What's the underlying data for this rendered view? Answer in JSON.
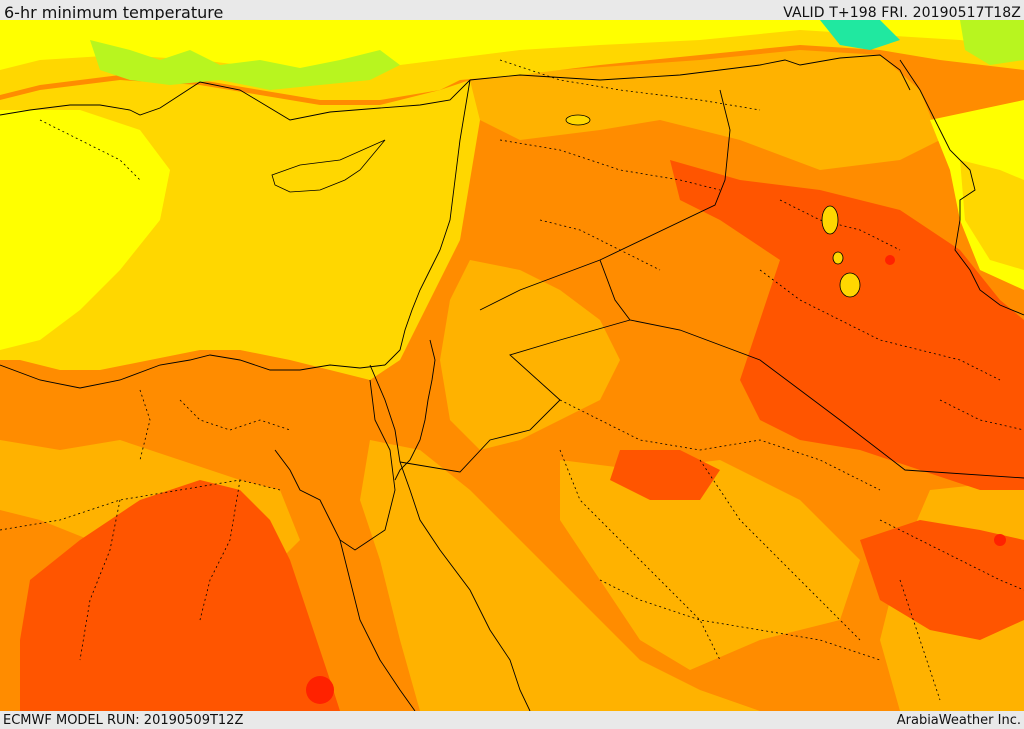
{
  "header": {
    "title": "6-hr minimum temperature",
    "valid_time": "VALID T+198 FRI. 20190517T18Z"
  },
  "footer": {
    "model_run": "ECMWF MODEL RUN: 20190509T12Z",
    "credit": "ArabiaWeather Inc."
  },
  "palette": {
    "green": "#3ef53c",
    "light_green": "#b8f51f",
    "yellow": "#ffff00",
    "gold": "#ffd700",
    "light_orange": "#ffb200",
    "orange": "#ff8c00",
    "dark_orange": "#ff5500",
    "red": "#ff2200",
    "teal": "#20e8a0",
    "border": "#000000"
  }
}
